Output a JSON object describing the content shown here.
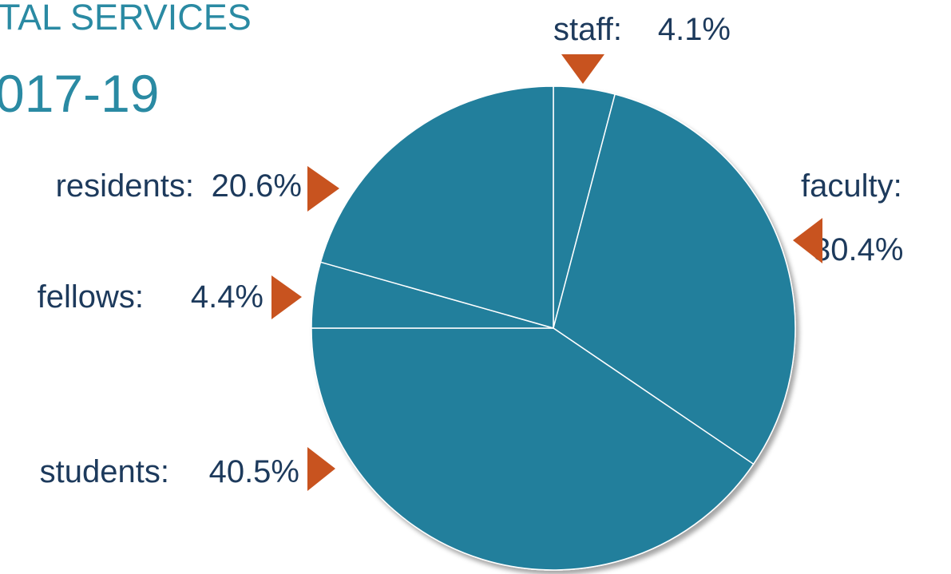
{
  "chart_data": {
    "type": "pie",
    "title": "TAL SERVICES",
    "subtitle": "017-19",
    "categories": [
      "staff:",
      "faculty:",
      "students:",
      "fellows:",
      "residents:"
    ],
    "values": [
      4.1,
      30.4,
      40.5,
      4.4,
      20.6
    ],
    "value_labels": [
      "4.1%",
      "30.4%",
      "40.5%",
      "4.4%",
      "20.6%"
    ],
    "color": "#237f9c",
    "arrow_color": "#c8531f"
  }
}
